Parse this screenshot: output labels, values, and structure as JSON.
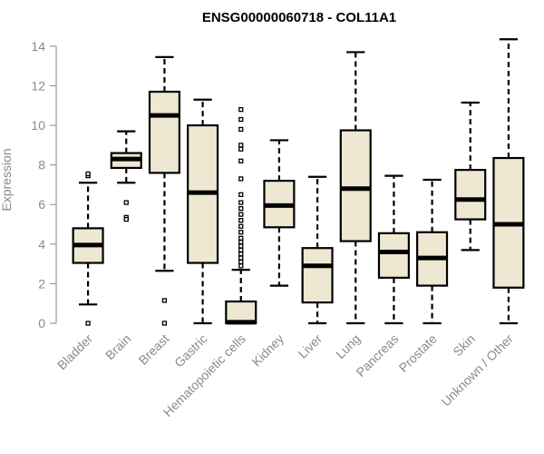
{
  "chart_data": {
    "type": "boxplot",
    "title": "ENSG00000060718 - COL11A1",
    "ylabel": "Expression",
    "xlabel": "",
    "ylim": [
      0,
      14.5
    ],
    "yticks": [
      0,
      2,
      4,
      6,
      8,
      10,
      12,
      14
    ],
    "grid": false,
    "colors": {
      "box_fill": "#EEE8D3",
      "stroke": "#000000",
      "axis": "#8a8a8a",
      "title": "#000000"
    },
    "categories": [
      "Bladder",
      "Brain",
      "Breast",
      "Gastric",
      "Hematopoietic cells",
      "Kidney",
      "Liver",
      "Lung",
      "Pancreas",
      "Prostate",
      "Skin",
      "Unknown / Other"
    ],
    "boxes": [
      {
        "category": "Bladder",
        "whisker_low": 0.95,
        "q1": 3.05,
        "median": 3.95,
        "q3": 4.8,
        "whisker_high": 7.1,
        "outliers": [
          0.0,
          7.45,
          7.55
        ]
      },
      {
        "category": "Brain",
        "whisker_low": 7.1,
        "q1": 7.85,
        "median": 8.3,
        "q3": 8.6,
        "whisker_high": 9.7,
        "outliers": [
          6.1,
          5.35,
          5.25
        ]
      },
      {
        "category": "Breast",
        "whisker_low": 2.65,
        "q1": 7.6,
        "median": 10.5,
        "q3": 11.7,
        "whisker_high": 13.45,
        "outliers": [
          1.15,
          0.0
        ]
      },
      {
        "category": "Gastric",
        "whisker_low": 0.0,
        "q1": 3.05,
        "median": 6.6,
        "q3": 10.0,
        "whisker_high": 11.3,
        "outliers": []
      },
      {
        "category": "Hematopoietic cells",
        "whisker_low": 0.0,
        "q1": 0.0,
        "median": 0.05,
        "q3": 1.1,
        "whisker_high": 2.7,
        "outliers": [
          2.9,
          3.1,
          3.3,
          3.5,
          3.7,
          3.9,
          4.1,
          4.3,
          4.6,
          4.9,
          5.2,
          5.5,
          5.8,
          6.1,
          6.5,
          7.3,
          8.2,
          8.8,
          9.0,
          9.8,
          10.3,
          10.8
        ]
      },
      {
        "category": "Kidney",
        "whisker_low": 1.9,
        "q1": 4.85,
        "median": 5.95,
        "q3": 7.2,
        "whisker_high": 9.25,
        "outliers": []
      },
      {
        "category": "Liver",
        "whisker_low": 0.0,
        "q1": 1.05,
        "median": 2.9,
        "q3": 3.8,
        "whisker_high": 7.4,
        "outliers": []
      },
      {
        "category": "Lung",
        "whisker_low": 0.0,
        "q1": 4.15,
        "median": 6.8,
        "q3": 9.75,
        "whisker_high": 13.7,
        "outliers": []
      },
      {
        "category": "Pancreas",
        "whisker_low": 0.0,
        "q1": 2.3,
        "median": 3.6,
        "q3": 4.55,
        "whisker_high": 7.45,
        "outliers": []
      },
      {
        "category": "Prostate",
        "whisker_low": 0.0,
        "q1": 1.9,
        "median": 3.3,
        "q3": 4.6,
        "whisker_high": 7.25,
        "outliers": []
      },
      {
        "category": "Skin",
        "whisker_low": 3.7,
        "q1": 5.25,
        "median": 6.25,
        "q3": 7.75,
        "whisker_high": 11.15,
        "outliers": []
      },
      {
        "category": "Unknown / Other",
        "whisker_low": 0.0,
        "q1": 1.8,
        "median": 5.0,
        "q3": 8.35,
        "whisker_high": 14.35,
        "outliers": []
      }
    ]
  }
}
